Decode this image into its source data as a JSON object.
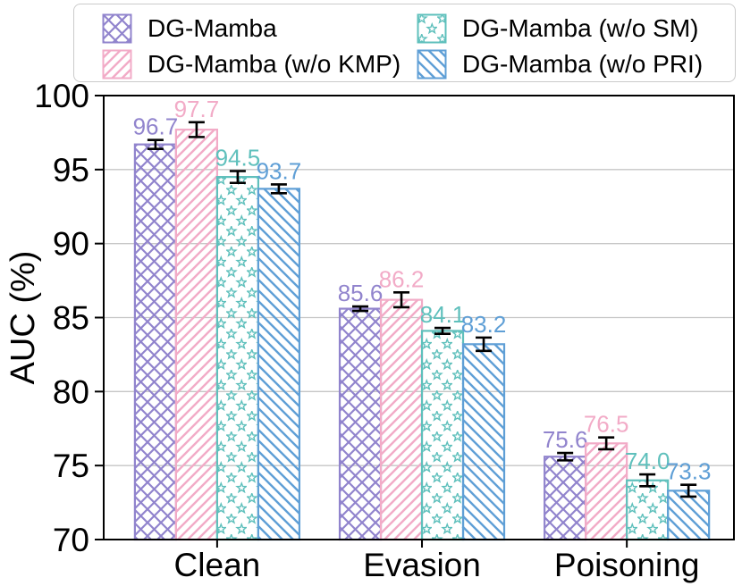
{
  "chart_data": {
    "type": "bar",
    "title": "",
    "xlabel": "",
    "ylabel": "AUC (%)",
    "ylim": [
      70,
      100
    ],
    "yticks": [
      70,
      75,
      80,
      85,
      90,
      95,
      100
    ],
    "grid": "horizontal gridlines at labeled y ticks",
    "legend_position": "top boxed, 2 columns x 2 rows, column-major order",
    "categories": [
      "Clean",
      "Evasion",
      "Poisoning"
    ],
    "series": [
      {
        "name": "DG-Mamba",
        "color": "#9184cd",
        "pattern": "crosshatch",
        "values": [
          96.7,
          85.6,
          75.6
        ],
        "errors": [
          0.3,
          0.15,
          0.25
        ]
      },
      {
        "name": "DG-Mamba (w/o KMP)",
        "color": "#f2abc7",
        "pattern": "diagonal-forward",
        "values": [
          97.7,
          86.2,
          76.5
        ],
        "errors": [
          0.5,
          0.5,
          0.4
        ]
      },
      {
        "name": "DG-Mamba (w/o SM)",
        "color": "#5fc0bc",
        "pattern": "stars",
        "values": [
          94.5,
          84.1,
          74.0
        ],
        "errors": [
          0.4,
          0.2,
          0.4
        ]
      },
      {
        "name": "DG-Mamba (w/o PRI)",
        "color": "#5f9fd6",
        "pattern": "diagonal-backward",
        "values": [
          93.7,
          83.2,
          73.3
        ],
        "errors": [
          0.3,
          0.45,
          0.4
        ]
      }
    ],
    "value_labels": "one decimal place above each error bar, colored as its series",
    "colors": {
      "axis": "#000000",
      "grid": "#c6c6c6",
      "error_bar": "#000000",
      "legend_border": "#cbcbcb",
      "background": "#ffffff",
      "bar_fill": "#ffffff"
    }
  }
}
